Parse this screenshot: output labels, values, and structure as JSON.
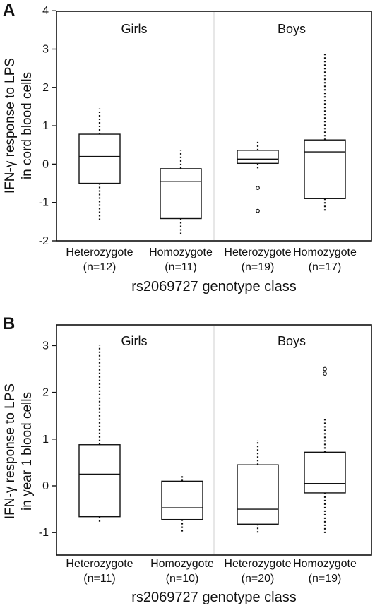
{
  "chart_data": [
    {
      "panel_label": "A",
      "type": "boxplot",
      "ylabel_lines": [
        "IFN-γ response to LPS",
        "in cord blood cells"
      ],
      "xlabel": "rs2069727 genotype class",
      "ylim": [
        -2,
        4
      ],
      "yticks": [
        -2,
        -1,
        0,
        1,
        2,
        3,
        4
      ],
      "tick_labels": [
        "-2",
        "-1",
        "0",
        "1",
        "2",
        "3",
        "4"
      ],
      "groups": [
        "Girls",
        "Boys"
      ],
      "boxes": [
        {
          "group": "Girls",
          "label": "Heterozygote",
          "n": "(n=12)",
          "whisker_low": -1.5,
          "q1": -0.5,
          "median": 0.2,
          "q3": 0.78,
          "whisker_high": 1.45,
          "outliers": []
        },
        {
          "group": "Girls",
          "label": "Homozygote",
          "n": "(n=11)",
          "whisker_low": -1.85,
          "q1": -1.42,
          "median": -0.45,
          "q3": -0.12,
          "whisker_high": 0.35,
          "outliers": []
        },
        {
          "group": "Boys",
          "label": "Heterozygote",
          "n": "(n=19)",
          "whisker_low": -0.15,
          "q1": 0.02,
          "median": 0.13,
          "q3": 0.36,
          "whisker_high": 0.62,
          "outliers": [
            -0.62,
            -1.22
          ]
        },
        {
          "group": "Boys",
          "label": "Homozygote",
          "n": "(n=17)",
          "whisker_low": -1.25,
          "q1": -0.9,
          "median": 0.32,
          "q3": 0.63,
          "whisker_high": 2.9,
          "outliers": []
        }
      ]
    },
    {
      "panel_label": "B",
      "type": "boxplot",
      "ylabel_lines": [
        "IFN-γ response to LPS",
        "in year 1 blood cells"
      ],
      "xlabel": "rs2069727 genotype class",
      "ylim": [
        -1.6,
        3.5
      ],
      "yticks": [
        -1,
        0,
        1,
        2,
        3
      ],
      "tick_labels": [
        "-1",
        "0",
        "1",
        "2",
        "3"
      ],
      "groups": [
        "Girls",
        "Boys"
      ],
      "boxes": [
        {
          "group": "Girls",
          "label": "Heterozygote",
          "n": "(n=11)",
          "whisker_low": -0.78,
          "q1": -0.66,
          "median": 0.25,
          "q3": 0.88,
          "whisker_high": 3.0,
          "outliers": []
        },
        {
          "group": "Girls",
          "label": "Homozygote",
          "n": "(n=10)",
          "whisker_low": -1.0,
          "q1": -0.72,
          "median": -0.47,
          "q3": 0.1,
          "whisker_high": 0.22,
          "outliers": []
        },
        {
          "group": "Boys",
          "label": "Heterozygote",
          "n": "(n=20)",
          "whisker_low": -1.0,
          "q1": -0.82,
          "median": -0.5,
          "q3": 0.45,
          "whisker_high": 0.98,
          "outliers": []
        },
        {
          "group": "Boys",
          "label": "Homozygote",
          "n": "(n=19)",
          "whisker_low": -1.05,
          "q1": -0.15,
          "median": 0.05,
          "q3": 0.72,
          "whisker_high": 1.45,
          "outliers": [
            2.4,
            2.5
          ]
        }
      ]
    }
  ]
}
